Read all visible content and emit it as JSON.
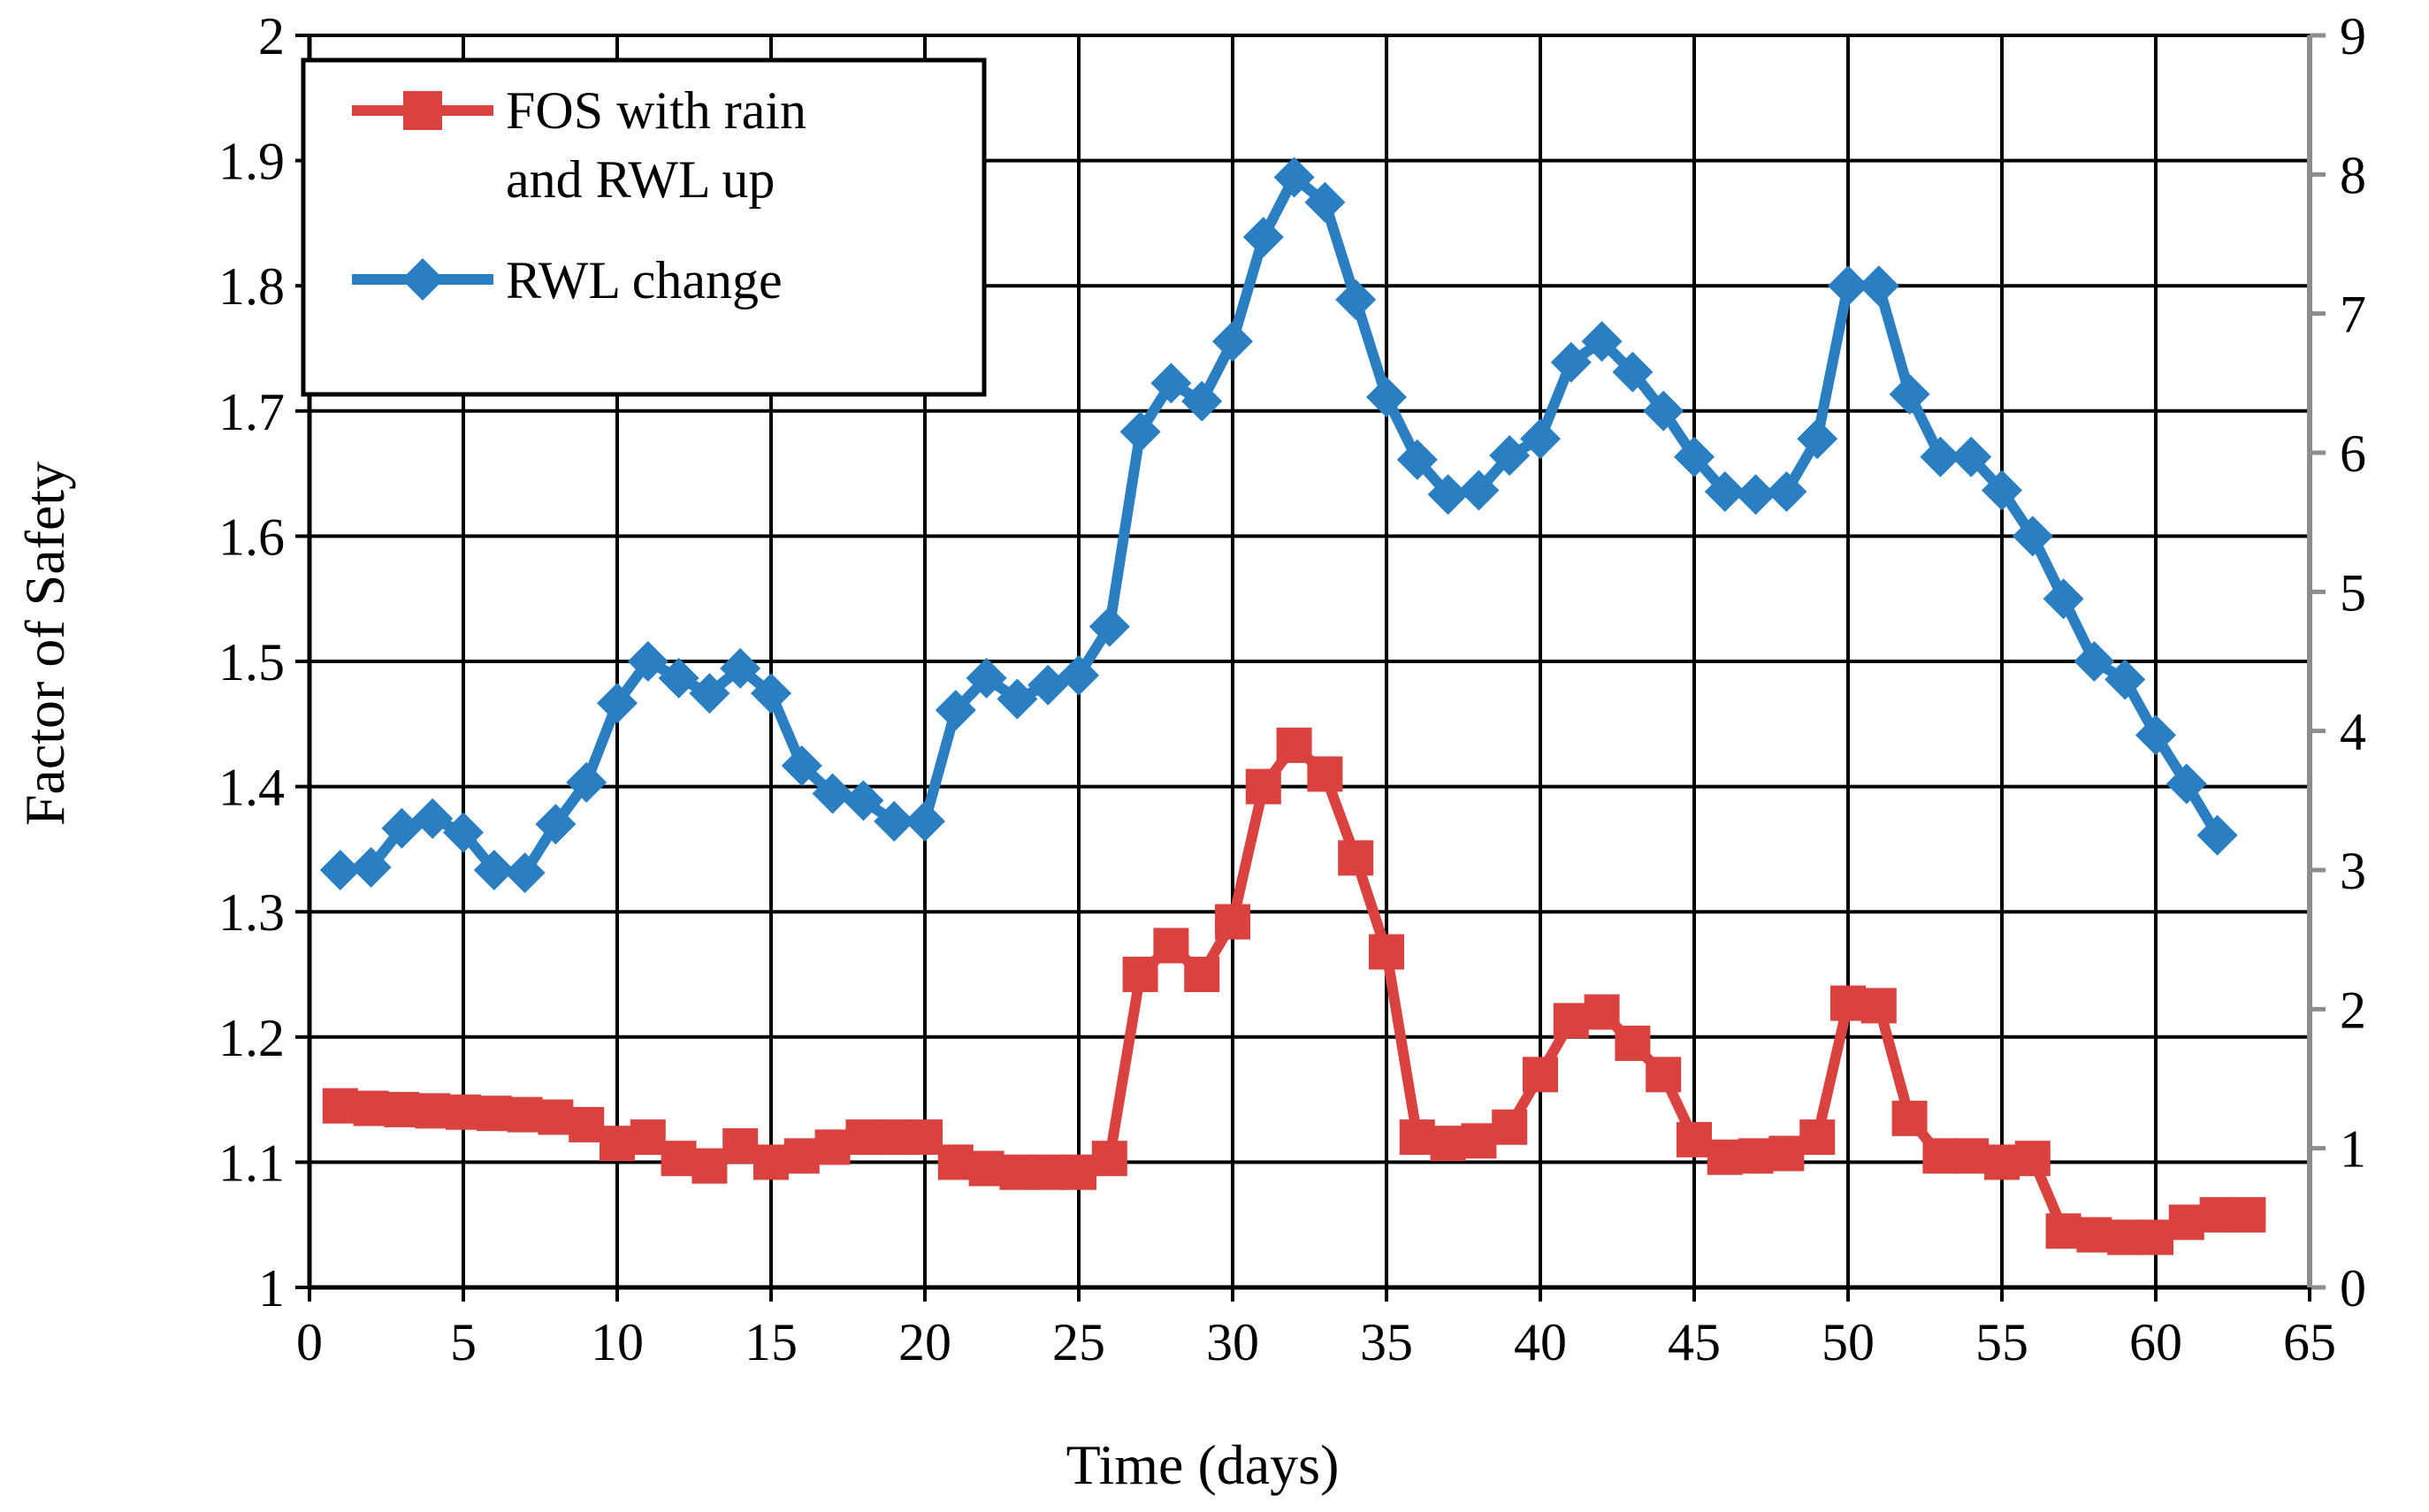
{
  "chart_data": {
    "type": "line",
    "title": "",
    "xlabel": "Time (days)",
    "ylabel": "Factor of Safety",
    "ylabel_right": "",
    "xlim": [
      0,
      65
    ],
    "ylim": [
      1,
      2
    ],
    "ylim_right": [
      0,
      9
    ],
    "x_ticks": [
      "0",
      "5",
      "10",
      "15",
      "20",
      "25",
      "30",
      "35",
      "40",
      "45",
      "50",
      "55",
      "60",
      "65"
    ],
    "y_ticks": [
      "1",
      "1.1",
      "1.2",
      "1.3",
      "1.4",
      "1.5",
      "1.6",
      "1.7",
      "1.8",
      "1.9",
      "2"
    ],
    "y_right_ticks": [
      "0",
      "1",
      "2",
      "3",
      "4",
      "5",
      "6",
      "7",
      "8",
      "9"
    ],
    "grid": true,
    "legend_position": "top-left",
    "series": [
      {
        "name": "FOS with rain and RWL up",
        "axis": "left",
        "color": "#d9423e",
        "marker": "square",
        "x": [
          1,
          2,
          3,
          4,
          5,
          6,
          7,
          8,
          9,
          10,
          11,
          12,
          13,
          14,
          15,
          16,
          17,
          18,
          19,
          20,
          21,
          22,
          23,
          24,
          25,
          26,
          27,
          28,
          29,
          30,
          31,
          32,
          33,
          34,
          35,
          36,
          37,
          38,
          39,
          40,
          41,
          42,
          43,
          44,
          45,
          46,
          47,
          48,
          49,
          50,
          51,
          52,
          53,
          54,
          55,
          56,
          57,
          58,
          59,
          60,
          61,
          62,
          63
        ],
        "values": [
          1.145,
          1.143,
          1.142,
          1.141,
          1.14,
          1.139,
          1.138,
          1.136,
          1.13,
          1.115,
          1.12,
          1.103,
          1.097,
          1.113,
          1.1,
          1.105,
          1.112,
          1.12,
          1.12,
          1.12,
          1.1,
          1.095,
          1.092,
          1.092,
          1.092,
          1.103,
          1.25,
          1.273,
          1.25,
          1.292,
          1.4,
          1.433,
          1.41,
          1.343,
          1.268,
          1.12,
          1.115,
          1.117,
          1.128,
          1.17,
          1.213,
          1.22,
          1.195,
          1.17,
          1.118,
          1.104,
          1.105,
          1.107,
          1.12,
          1.227,
          1.225,
          1.135,
          1.105,
          1.105,
          1.1,
          1.103,
          1.045,
          1.042,
          1.04,
          1.04,
          1.052,
          1.058,
          1.058
        ]
      },
      {
        "name": "RWL change",
        "axis": "right",
        "color": "#2a7ec2",
        "marker": "diamond",
        "x": [
          1,
          2,
          3,
          4,
          5,
          6,
          7,
          8,
          9,
          10,
          11,
          12,
          13,
          14,
          15,
          16,
          17,
          18,
          19,
          20,
          21,
          22,
          23,
          24,
          25,
          26,
          27,
          28,
          29,
          30,
          31,
          32,
          33,
          34,
          35,
          36,
          37,
          38,
          39,
          40,
          41,
          42,
          43,
          44,
          45,
          46,
          47,
          48,
          49,
          50,
          51,
          52,
          53,
          54,
          55,
          56,
          57,
          58,
          59,
          60,
          61,
          62
        ],
        "values": [
          3.0,
          3.02,
          3.3,
          3.37,
          3.27,
          3.0,
          2.98,
          3.33,
          3.63,
          4.2,
          4.5,
          4.38,
          4.27,
          4.45,
          4.27,
          3.75,
          3.55,
          3.5,
          3.35,
          3.35,
          4.15,
          4.38,
          4.23,
          4.33,
          4.4,
          4.75,
          6.15,
          6.5,
          6.37,
          6.8,
          7.55,
          7.98,
          7.8,
          7.1,
          6.4,
          5.95,
          5.7,
          5.73,
          5.98,
          6.1,
          6.65,
          6.8,
          6.58,
          6.3,
          5.97,
          5.72,
          5.7,
          5.72,
          6.1,
          7.2,
          7.2,
          6.42,
          5.97,
          5.97,
          5.73,
          5.4,
          4.95,
          4.5,
          4.37,
          3.97,
          3.62,
          3.25
        ]
      }
    ]
  }
}
